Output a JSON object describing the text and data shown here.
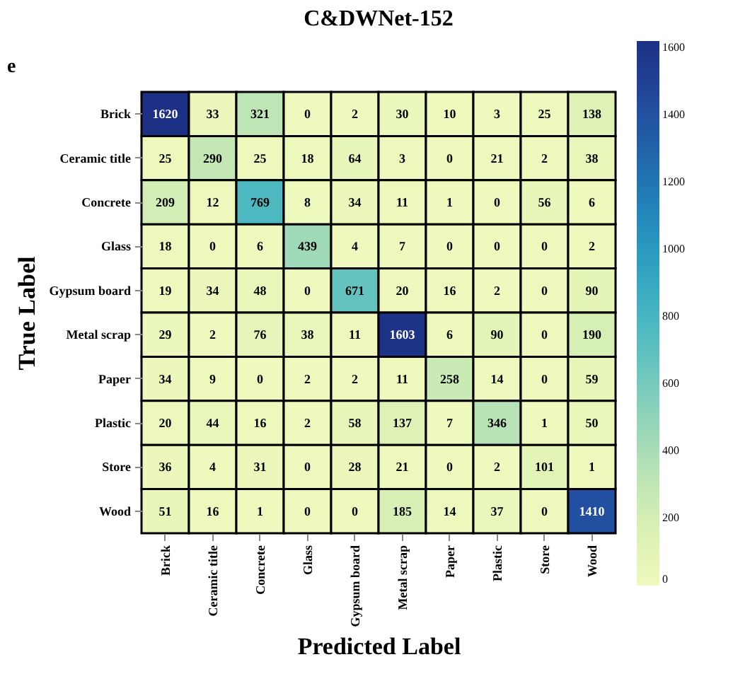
{
  "chart_data": {
    "type": "heatmap",
    "title": "C&DWNet-152",
    "xlabel": "Predicted Label",
    "ylabel": "True Label",
    "annotations": [
      "e"
    ],
    "categories": [
      "Brick",
      "Ceramic title",
      "Concrete",
      "Glass",
      "Gypsum board",
      "Metal scrap",
      "Paper",
      "Plastic",
      "Store",
      "Wood"
    ],
    "y_categories": [
      "Brick",
      "Ceramic title",
      "Concrete",
      "Glass",
      "Gypsum board",
      "Metal scrap",
      "Paper",
      "Plastic",
      "Store",
      "Wood"
    ],
    "cells": [
      [
        1620,
        33,
        321,
        0,
        2,
        30,
        10,
        3,
        25,
        138
      ],
      [
        25,
        290,
        25,
        18,
        64,
        3,
        0,
        21,
        2,
        38
      ],
      [
        209,
        12,
        769,
        8,
        34,
        11,
        1,
        0,
        56,
        6
      ],
      [
        18,
        0,
        6,
        439,
        4,
        7,
        0,
        0,
        0,
        2
      ],
      [
        19,
        34,
        48,
        0,
        671,
        20,
        16,
        2,
        0,
        90
      ],
      [
        29,
        2,
        76,
        38,
        11,
        1603,
        6,
        90,
        0,
        190
      ],
      [
        34,
        9,
        0,
        2,
        2,
        11,
        258,
        14,
        0,
        59
      ],
      [
        20,
        44,
        16,
        2,
        58,
        137,
        7,
        346,
        1,
        50
      ],
      [
        36,
        4,
        31,
        0,
        28,
        21,
        0,
        2,
        101,
        1
      ],
      [
        51,
        16,
        1,
        0,
        0,
        185,
        14,
        37,
        0,
        1410
      ]
    ],
    "data_labels": true,
    "clim": [
      0,
      1620
    ],
    "cticks": [
      0,
      200,
      400,
      600,
      800,
      1000,
      1200,
      1400,
      1600
    ]
  }
}
